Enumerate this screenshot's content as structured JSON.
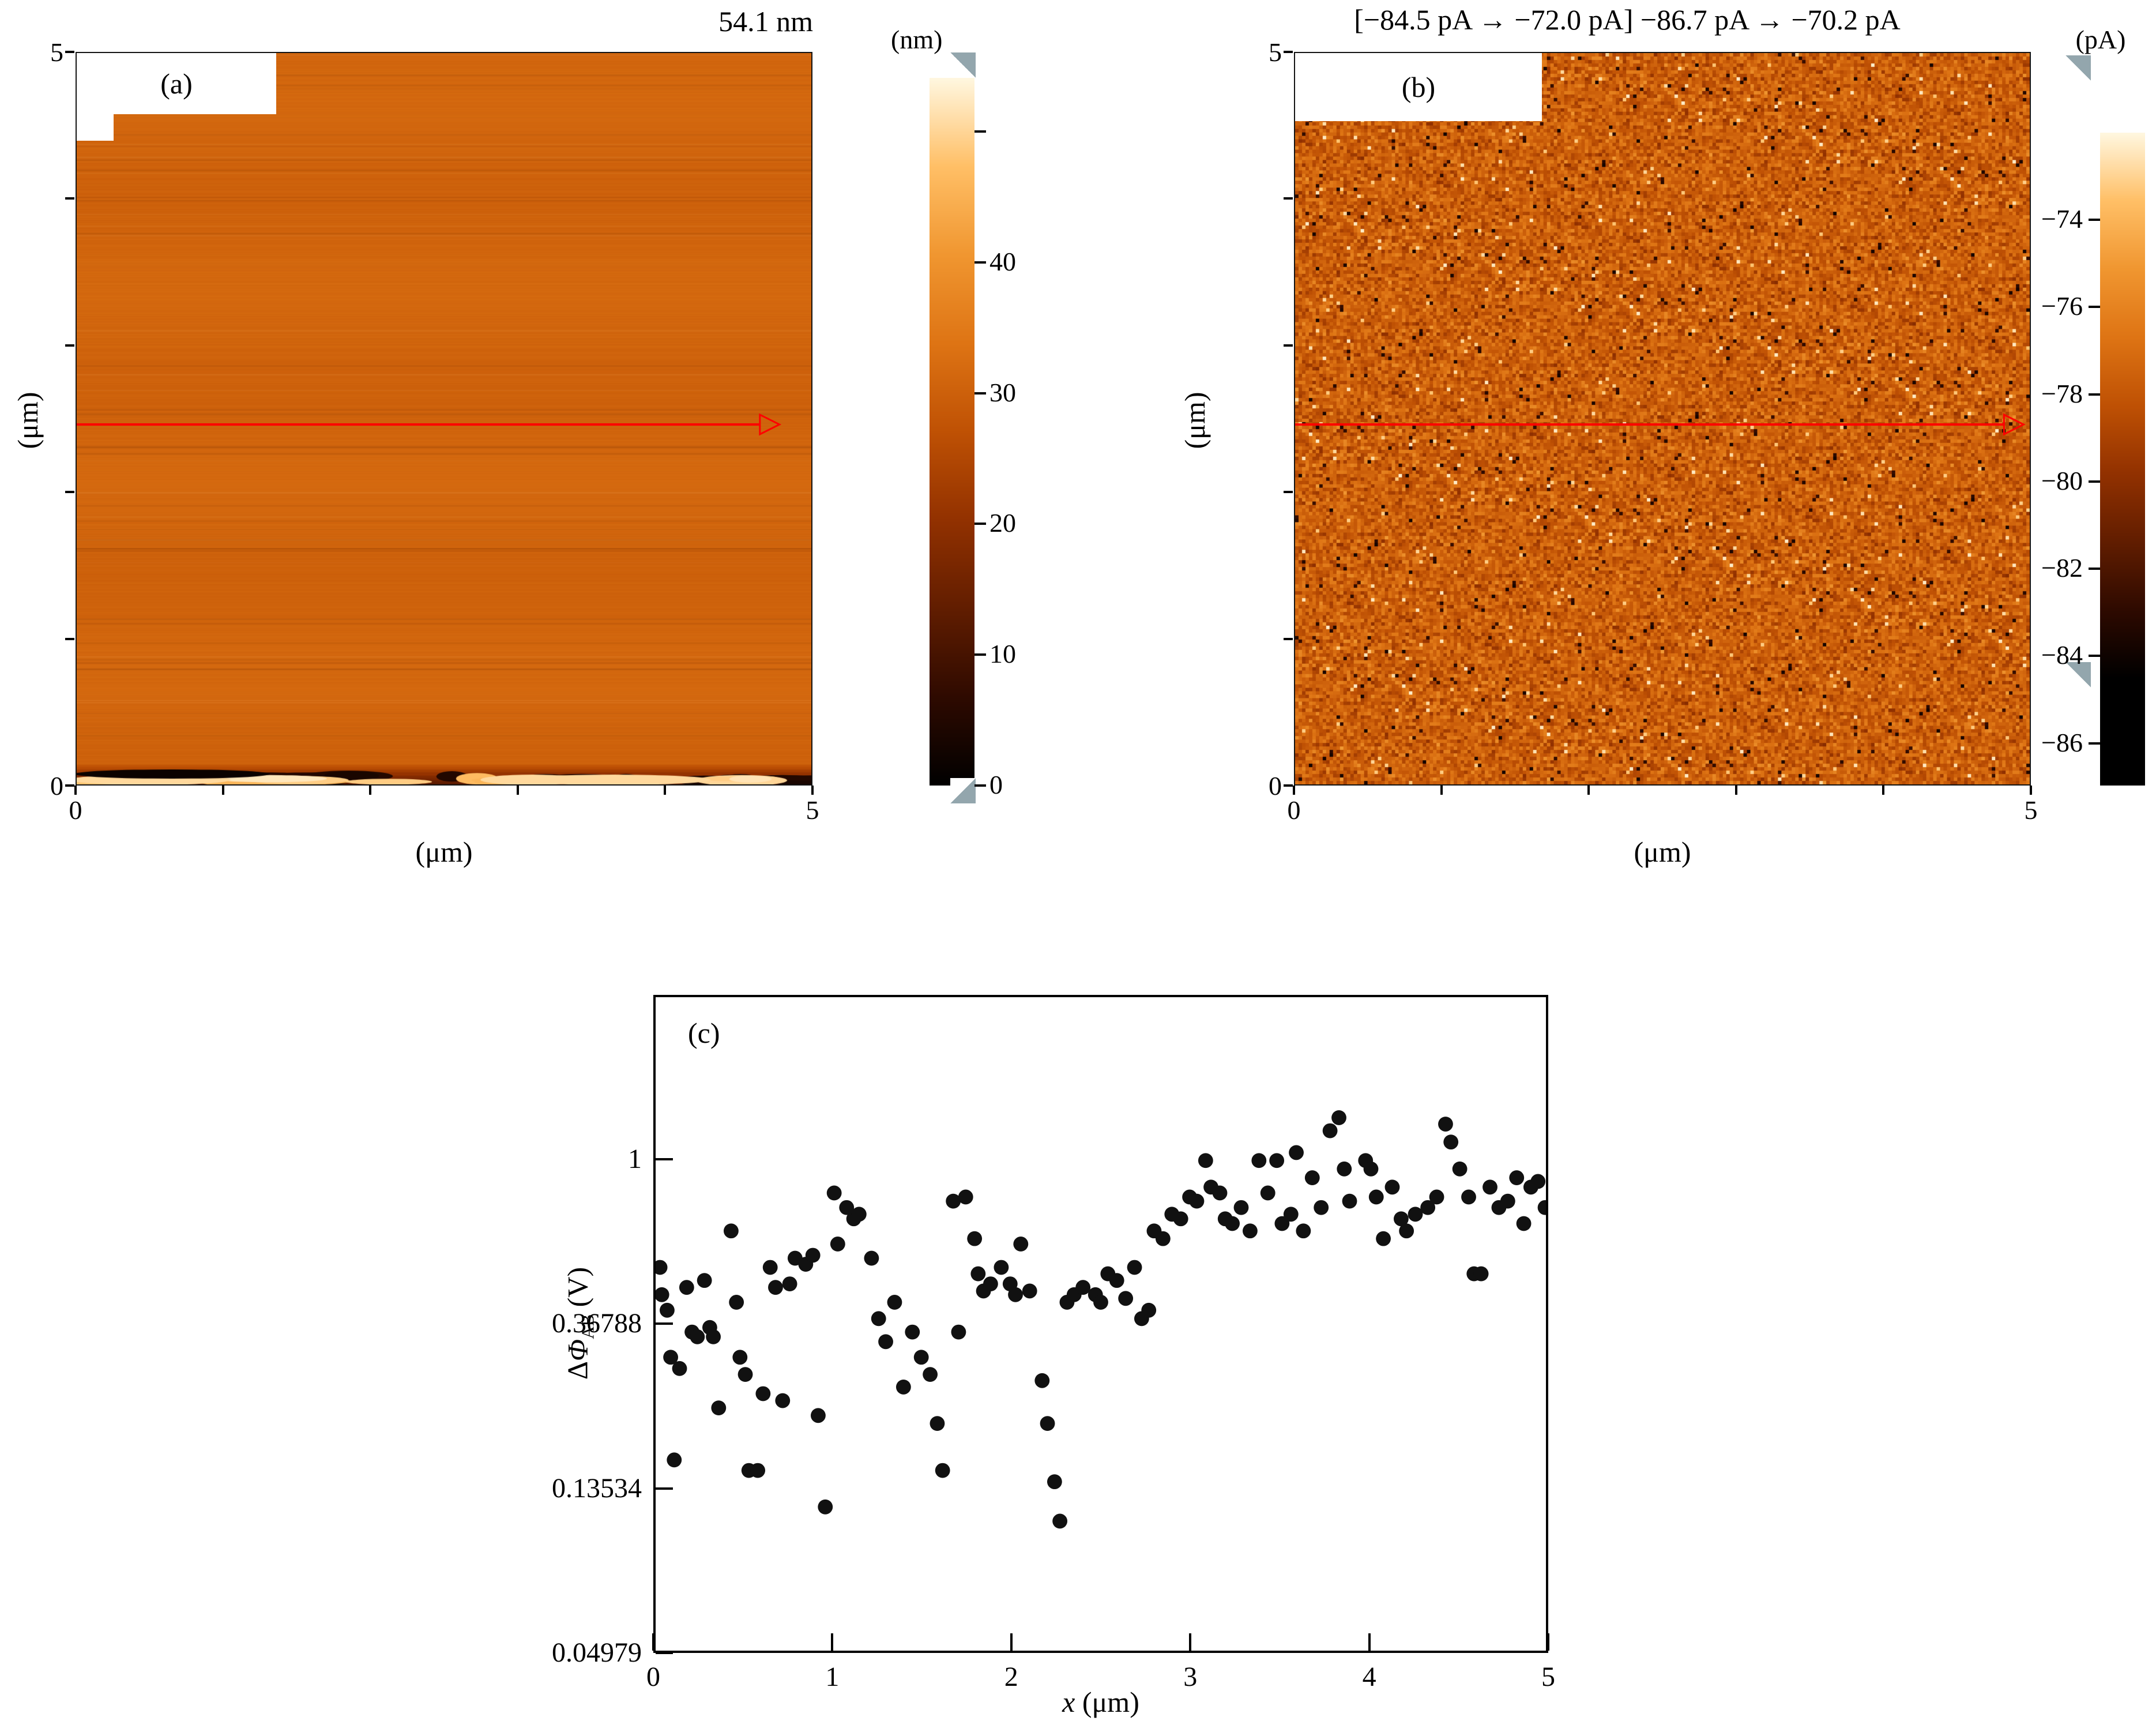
{
  "panels": {
    "a": {
      "label": "(a)",
      "title": "54.1 nm",
      "axis_unit": "(μm)",
      "x_tick_min": "0",
      "x_tick_max": "5",
      "y_tick_min": "0",
      "y_tick_max": "5",
      "colorbar_unit": "(nm)",
      "colorbar_tick_labels": [
        "40",
        "30",
        "20",
        "10",
        "0"
      ]
    },
    "b": {
      "label": "(b)",
      "title": "[−84.5 pA → −72.0 pA] −86.7 pA → −70.2 pA",
      "axis_unit": "(μm)",
      "x_tick_min": "0",
      "x_tick_max": "5",
      "y_tick_min": "0",
      "y_tick_max": "5",
      "colorbar_unit": "(pA)",
      "colorbar_tick_labels": [
        "−74",
        "−76",
        "−78",
        "−80",
        "−82",
        "−84",
        "−86"
      ]
    },
    "c": {
      "label": "(c)",
      "ylabel": {
        "delta": "Δ",
        "phi": "Φ",
        "sub": "AB",
        "unit": " (V)"
      },
      "xlabel": {
        "var": "x",
        "unit": " (μm)"
      },
      "x_tick_labels": [
        "0",
        "1",
        "2",
        "3",
        "4",
        "5"
      ],
      "y_tick_labels": [
        "1",
        "0.36788",
        "0.13534",
        "0.04979"
      ]
    }
  },
  "chart_data": [
    {
      "id": "a",
      "type": "heatmap",
      "kind": "AFM topography image",
      "title": "54.1 nm",
      "xlabel": "(μm)",
      "ylabel": "(μm)",
      "xlim_um": [
        0,
        5
      ],
      "ylim_um": [
        0,
        5
      ],
      "z_unit": "nm",
      "z_display_max": 54.1,
      "colorbar_ticks": [
        40,
        30,
        20,
        10,
        0
      ],
      "colorbar_minor_ticks": [
        50
      ],
      "palette": [
        "#000000",
        "#2e0a00",
        "#611d00",
        "#923100",
        "#bf5104",
        "#de7414",
        "#f09630",
        "#ffbf66",
        "#fff7e0"
      ],
      "appearance": "uniform mid-orange surface with faint horizontal scan lines and a dark/bright streak band along the bottom edge",
      "profile_line": {
        "y_um": 2.5,
        "color": "#ff0000"
      }
    },
    {
      "id": "b",
      "type": "heatmap",
      "kind": "current map",
      "title": "[−84.5 pA → −72.0 pA] −86.7 pA → −70.2 pA",
      "xlabel": "(μm)",
      "ylabel": "(μm)",
      "xlim_um": [
        0,
        5
      ],
      "ylim_um": [
        0,
        5
      ],
      "z_unit": "pA",
      "display_range_pA": [
        -84.5,
        -72.0
      ],
      "full_range_pA": [
        -86.7,
        -70.2
      ],
      "colorbar_ticks": [
        -74,
        -76,
        -78,
        -80,
        -82,
        -84,
        -86
      ],
      "palette": [
        "#000000",
        "#2e0a00",
        "#611d00",
        "#923100",
        "#bf5104",
        "#de7414",
        "#f09630",
        "#ffbf66",
        "#fff7e0"
      ],
      "appearance": "fine granular orange noise spanning dark brown to pale cream",
      "profile_line": {
        "y_um": 2.5,
        "color": "#ff0000"
      }
    },
    {
      "id": "c",
      "type": "scatter",
      "title": "",
      "xlabel": "x (μm)",
      "ylabel": "ΔΦAB (V)",
      "xlim": [
        0,
        5
      ],
      "xticks": [
        0,
        1,
        2,
        3,
        4,
        5
      ],
      "yscale": "log",
      "ylog_range": [
        -3,
        1
      ],
      "yticks": [
        1,
        0.36788,
        0.13534,
        0.04979
      ],
      "marker": {
        "shape": "circle",
        "color": "#111111",
        "radius_px": 13
      },
      "points": [
        [
          0.02,
          0.52
        ],
        [
          0.03,
          0.44
        ],
        [
          0.06,
          0.4
        ],
        [
          0.08,
          0.3
        ],
        [
          0.1,
          0.16
        ],
        [
          0.13,
          0.28
        ],
        [
          0.17,
          0.46
        ],
        [
          0.2,
          0.35
        ],
        [
          0.23,
          0.34
        ],
        [
          0.27,
          0.48
        ],
        [
          0.3,
          0.36
        ],
        [
          0.32,
          0.34
        ],
        [
          0.35,
          0.22
        ],
        [
          0.42,
          0.65
        ],
        [
          0.45,
          0.42
        ],
        [
          0.47,
          0.3
        ],
        [
          0.5,
          0.27
        ],
        [
          0.52,
          0.15
        ],
        [
          0.57,
          0.15
        ],
        [
          0.6,
          0.24
        ],
        [
          0.64,
          0.52
        ],
        [
          0.67,
          0.46
        ],
        [
          0.71,
          0.23
        ],
        [
          0.75,
          0.47
        ],
        [
          0.78,
          0.55
        ],
        [
          0.84,
          0.53
        ],
        [
          0.88,
          0.56
        ],
        [
          0.91,
          0.21
        ],
        [
          0.95,
          0.12
        ],
        [
          1.0,
          0.82
        ],
        [
          1.02,
          0.6
        ],
        [
          1.07,
          0.75
        ],
        [
          1.11,
          0.7
        ],
        [
          1.14,
          0.72
        ],
        [
          1.21,
          0.55
        ],
        [
          1.25,
          0.38
        ],
        [
          1.29,
          0.33
        ],
        [
          1.34,
          0.42
        ],
        [
          1.39,
          0.25
        ],
        [
          1.44,
          0.35
        ],
        [
          1.49,
          0.3
        ],
        [
          1.54,
          0.27
        ],
        [
          1.58,
          0.2
        ],
        [
          1.61,
          0.15
        ],
        [
          1.67,
          0.78
        ],
        [
          1.7,
          0.35
        ],
        [
          1.74,
          0.8
        ],
        [
          1.79,
          0.62
        ],
        [
          1.81,
          0.5
        ],
        [
          1.84,
          0.45
        ],
        [
          1.88,
          0.47
        ],
        [
          1.94,
          0.52
        ],
        [
          1.99,
          0.47
        ],
        [
          2.02,
          0.44
        ],
        [
          2.05,
          0.6
        ],
        [
          2.1,
          0.45
        ],
        [
          2.17,
          0.26
        ],
        [
          2.2,
          0.2
        ],
        [
          2.24,
          0.14
        ],
        [
          2.27,
          0.11
        ],
        [
          2.31,
          0.42
        ],
        [
          2.35,
          0.44
        ],
        [
          2.4,
          0.46
        ],
        [
          2.47,
          0.44
        ],
        [
          2.5,
          0.42
        ],
        [
          2.54,
          0.5
        ],
        [
          2.59,
          0.48
        ],
        [
          2.64,
          0.43
        ],
        [
          2.69,
          0.52
        ],
        [
          2.73,
          0.38
        ],
        [
          2.77,
          0.4
        ],
        [
          2.8,
          0.65
        ],
        [
          2.85,
          0.62
        ],
        [
          2.9,
          0.72
        ],
        [
          2.95,
          0.7
        ],
        [
          3.0,
          0.8
        ],
        [
          3.04,
          0.78
        ],
        [
          3.09,
          1.0
        ],
        [
          3.12,
          0.85
        ],
        [
          3.17,
          0.82
        ],
        [
          3.2,
          0.7
        ],
        [
          3.24,
          0.68
        ],
        [
          3.29,
          0.75
        ],
        [
          3.34,
          0.65
        ],
        [
          3.39,
          1.0
        ],
        [
          3.44,
          0.82
        ],
        [
          3.49,
          1.0
        ],
        [
          3.52,
          0.68
        ],
        [
          3.57,
          0.72
        ],
        [
          3.6,
          1.05
        ],
        [
          3.64,
          0.65
        ],
        [
          3.69,
          0.9
        ],
        [
          3.74,
          0.75
        ],
        [
          3.79,
          1.2
        ],
        [
          3.84,
          1.3
        ],
        [
          3.87,
          0.95
        ],
        [
          3.9,
          0.78
        ],
        [
          3.99,
          1.0
        ],
        [
          4.02,
          0.95
        ],
        [
          4.05,
          0.8
        ],
        [
          4.09,
          0.62
        ],
        [
          4.14,
          0.85
        ],
        [
          4.19,
          0.7
        ],
        [
          4.22,
          0.65
        ],
        [
          4.27,
          0.72
        ],
        [
          4.34,
          0.75
        ],
        [
          4.39,
          0.8
        ],
        [
          4.44,
          1.25
        ],
        [
          4.47,
          1.12
        ],
        [
          4.52,
          0.95
        ],
        [
          4.57,
          0.8
        ],
        [
          4.6,
          0.5
        ],
        [
          4.64,
          0.5
        ],
        [
          4.69,
          0.85
        ],
        [
          4.74,
          0.75
        ],
        [
          4.79,
          0.78
        ],
        [
          4.84,
          0.9
        ],
        [
          4.88,
          0.68
        ],
        [
          4.92,
          0.85
        ],
        [
          4.96,
          0.88
        ],
        [
          5.0,
          0.75
        ]
      ]
    }
  ]
}
